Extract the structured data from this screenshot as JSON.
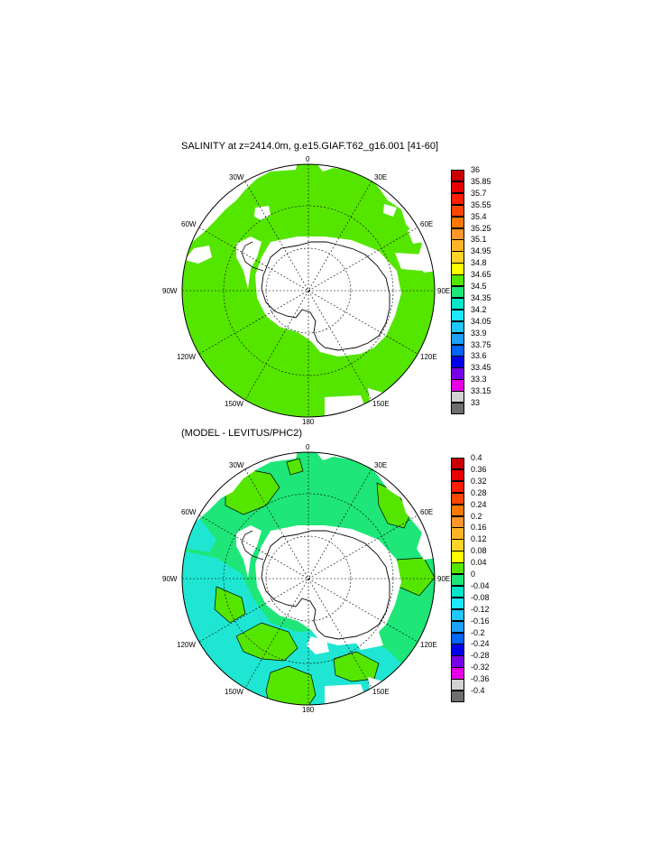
{
  "panels": [
    {
      "title": "SALINITY at z=2414.0m, g.e15.GIAF.T62_g16.001 [41-60]",
      "longitude_labels": {
        "top": "0",
        "upper_left": "30W",
        "upper_right": "30E",
        "left_upper": "60W",
        "right_upper": "60E",
        "left": "90W",
        "right": "90E",
        "left_lower": "120W",
        "right_lower": "120E",
        "lower_left": "150W",
        "lower_right": "150E",
        "bottom": "180"
      },
      "colorbar": {
        "labels": [
          "36",
          "35.85",
          "35.7",
          "35.55",
          "35.4",
          "35.25",
          "35.1",
          "34.95",
          "34.8",
          "34.65",
          "34.5",
          "34.35",
          "34.2",
          "34.05",
          "33.9",
          "33.75",
          "33.6",
          "33.45",
          "33.3",
          "33.15",
          "33"
        ],
        "colors": [
          "#c80000",
          "#e60000",
          "#ff1e00",
          "#ff4600",
          "#ff7800",
          "#ff9628",
          "#ffb428",
          "#ffd228",
          "#ffff00",
          "#55e600",
          "#1ee678",
          "#00e6c8",
          "#1ee6ff",
          "#1ec8ff",
          "#1ea0ff",
          "#0064ff",
          "#0000e6",
          "#7800e6",
          "#e600e6",
          "#d2d2d2",
          "#6e6e6e"
        ]
      },
      "field_color": "#55e600"
    },
    {
      "title": "(MODEL - LEVITUS/PHC2)",
      "longitude_labels": {
        "top": "0",
        "upper_left": "30W",
        "upper_right": "30E",
        "left_upper": "60W",
        "right_upper": "60E",
        "left": "90W",
        "right": "90E",
        "left_lower": "120W",
        "right_lower": "120E",
        "lower_left": "150W",
        "lower_right": "150E",
        "bottom": "180"
      },
      "colorbar": {
        "labels": [
          "0.4",
          "0.36",
          "0.32",
          "0.28",
          "0.24",
          "0.2",
          "0.16",
          "0.12",
          "0.08",
          "0.04",
          "0",
          "-0.04",
          "-0.08",
          "-0.12",
          "-0.16",
          "-0.2",
          "-0.24",
          "-0.28",
          "-0.32",
          "-0.36",
          "-0.4"
        ],
        "colors": [
          "#c80000",
          "#e60000",
          "#ff1e00",
          "#ff4600",
          "#ff7800",
          "#ff9628",
          "#ffb428",
          "#ffd228",
          "#ffff00",
          "#55e600",
          "#1ee678",
          "#00e6c8",
          "#1ee6ff",
          "#1ec8ff",
          "#1ea0ff",
          "#0064ff",
          "#0000e6",
          "#7800e6",
          "#e600e6",
          "#d2d2d2",
          "#6e6e6e"
        ]
      },
      "field_color": "#1ee678",
      "secondary_color": "#1ee6d2"
    }
  ]
}
